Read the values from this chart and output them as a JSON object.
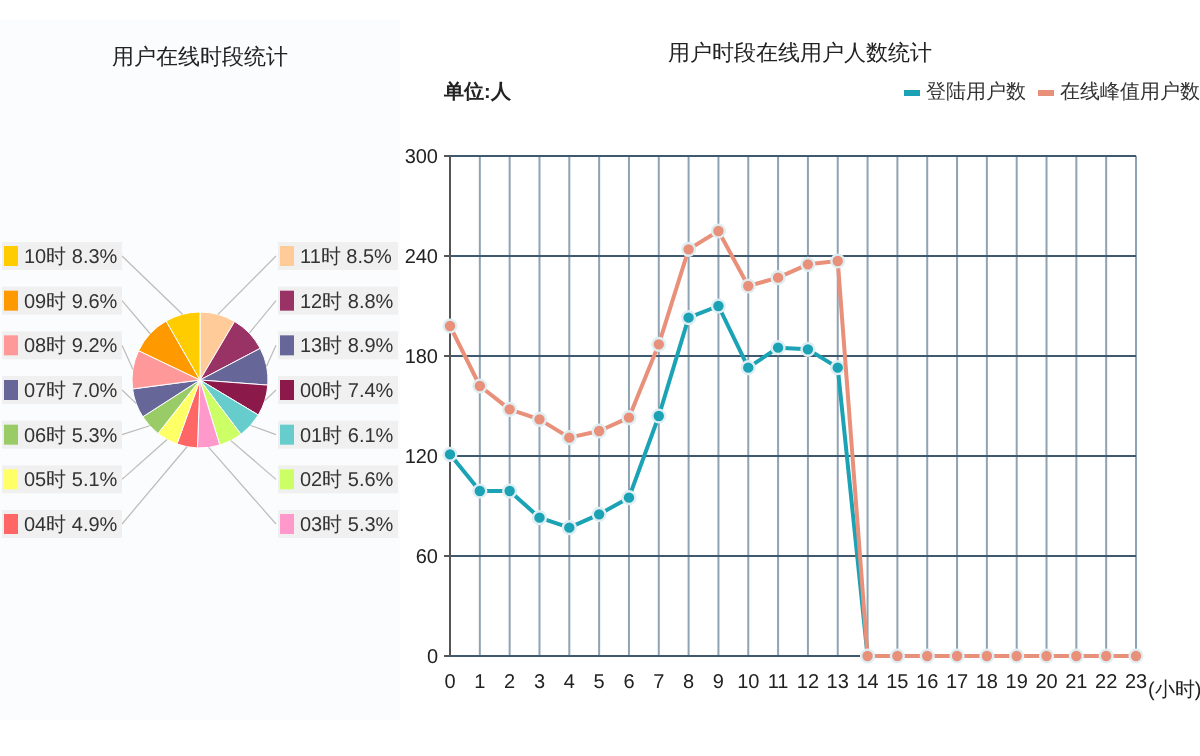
{
  "chart_data": [
    {
      "type": "pie",
      "title": "用户在线时段统计",
      "categories": [
        "11时",
        "12时",
        "13时",
        "00时",
        "01时",
        "02时",
        "03时",
        "04时",
        "05时",
        "06时",
        "07时",
        "08时",
        "09时",
        "10时"
      ],
      "values": [
        8.5,
        8.8,
        8.9,
        7.4,
        6.1,
        5.6,
        5.3,
        4.9,
        5.1,
        5.3,
        7.0,
        9.2,
        9.6,
        8.3
      ],
      "value_labels": [
        "8.5%",
        "8.8%",
        "8.9%",
        "7.4%",
        "6.1%",
        "5.6%",
        "5.3%",
        "4.9%",
        "5.1%",
        "5.3%",
        "7.0%",
        "9.2%",
        "9.6%",
        "8.3%"
      ],
      "colors": [
        "#ffcc99",
        "#993366",
        "#666699",
        "#8b1a4a",
        "#66cccc",
        "#ccff66",
        "#ff99cc",
        "#ff6666",
        "#ffff66",
        "#99cc66",
        "#666699",
        "#ff9999",
        "#ff9900",
        "#ffcc00"
      ],
      "legend": "right"
    },
    {
      "type": "line",
      "title": "用户时段在线用户人数统计",
      "ylabel": "单位:人",
      "xlabel": "(小时)",
      "x": [
        0,
        1,
        2,
        3,
        4,
        5,
        6,
        7,
        8,
        9,
        10,
        11,
        12,
        13,
        14,
        15,
        16,
        17,
        18,
        19,
        20,
        21,
        22,
        23
      ],
      "xlim": [
        0,
        23
      ],
      "xticks": [
        0,
        1,
        2,
        3,
        4,
        5,
        6,
        7,
        8,
        9,
        10,
        11,
        12,
        13,
        14,
        15,
        16,
        17,
        18,
        19,
        20,
        21,
        22,
        23
      ],
      "ylim": [
        0,
        300
      ],
      "yticks": [
        0,
        60,
        120,
        180,
        240,
        300
      ],
      "grid": true,
      "legend": "top right",
      "marker": "circle",
      "line_style": "solid",
      "series": [
        {
          "name": "登陆用户数",
          "color": "#1ba3b5",
          "values": [
            121,
            99,
            99,
            83,
            77,
            85,
            95,
            144,
            203,
            210,
            173,
            185,
            184,
            173,
            0,
            null,
            null,
            null,
            null,
            null,
            null,
            null,
            null,
            null
          ]
        },
        {
          "name": "在线峰值用户数",
          "color": "#e8907a",
          "values": [
            198,
            162,
            148,
            142,
            131,
            135,
            143,
            187,
            244,
            255,
            222,
            227,
            235,
            237,
            0,
            0,
            0,
            0,
            0,
            0,
            0,
            0,
            0,
            0
          ]
        }
      ]
    }
  ]
}
